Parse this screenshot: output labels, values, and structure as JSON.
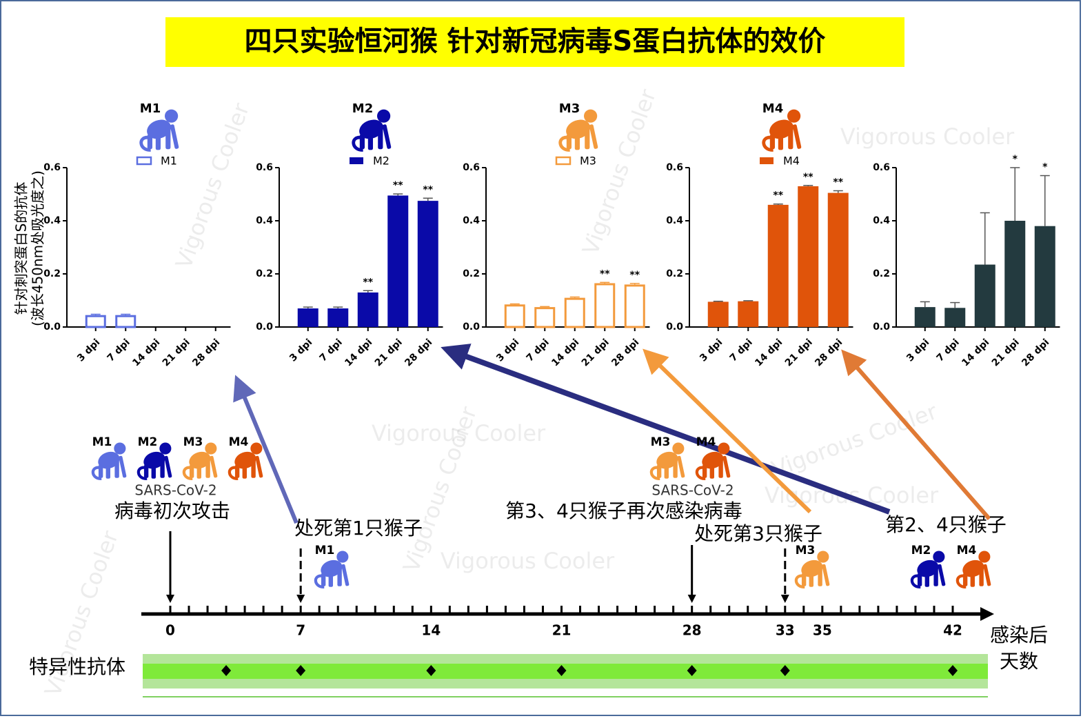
{
  "title": "四只实验恒河猴 针对新冠病毒S蛋白抗体的效价",
  "watermark": "Vigorous Cooler",
  "chart_data": [
    {
      "type": "bar",
      "name": "M1",
      "legend": "M1",
      "color": "#5b6ee0",
      "hollow": true,
      "ylabel": [
        "针对刺突蛋白S的抗体",
        "(波长450nm处吸光度之)"
      ],
      "categories": [
        "3 dpi",
        "7 dpi",
        "14 dpi",
        "21 dpi",
        "28 dpi"
      ],
      "values": [
        0.045,
        0.045,
        null,
        null,
        null
      ],
      "errors": [
        0.003,
        0.003,
        null,
        null,
        null
      ],
      "sig": [
        null,
        null,
        null,
        null,
        null
      ],
      "ylim": [
        0,
        0.6
      ],
      "yticks": [
        {
          "value": 0,
          "label": "0.0"
        },
        0.2,
        0.4,
        0.6
      ]
    },
    {
      "type": "bar",
      "name": "M2",
      "legend": "M2",
      "color": "#0a0aa8",
      "hollow": false,
      "categories": [
        "3 dpi",
        "7 dpi",
        "14 dpi",
        "21 dpi",
        "28 dpi"
      ],
      "values": [
        0.07,
        0.07,
        0.13,
        0.495,
        0.475
      ],
      "errors": [
        0.005,
        0.005,
        0.007,
        0.006,
        0.01
      ],
      "sig": [
        null,
        null,
        "**",
        "**",
        "**"
      ],
      "ylim": [
        0,
        0.6
      ],
      "yticks": [
        {
          "value": 0,
          "label": "0.0"
        },
        0.2,
        0.4,
        0.6
      ]
    },
    {
      "type": "bar",
      "name": "M3",
      "legend": "M3",
      "color": "#f39a3c",
      "hollow": true,
      "categories": [
        "3 dpi",
        "7 dpi",
        "14 dpi",
        "21 dpi",
        "28 dpi"
      ],
      "values": [
        0.085,
        0.075,
        0.11,
        0.165,
        0.16
      ],
      "errors": [
        0.002,
        0.002,
        0.003,
        0.003,
        0.004
      ],
      "sig": [
        null,
        null,
        null,
        "**",
        "**"
      ],
      "ylim": [
        0,
        0.6
      ],
      "yticks": [
        {
          "value": 0,
          "label": "0.0"
        },
        0.2,
        0.4,
        0.6
      ]
    },
    {
      "type": "bar",
      "name": "M4",
      "legend": "M4",
      "color": "#e0540a",
      "hollow": false,
      "categories": [
        "3 dpi",
        "7 dpi",
        "14 dpi",
        "21 dpi",
        "28 dpi"
      ],
      "values": [
        0.095,
        0.097,
        0.46,
        0.53,
        0.505
      ],
      "errors": [
        0.002,
        0.002,
        0.003,
        0.003,
        0.008
      ],
      "sig": [
        null,
        null,
        "**",
        "**",
        "**"
      ],
      "ylim": [
        0,
        0.6
      ],
      "yticks": [
        {
          "value": 0,
          "label": "0.0"
        },
        0.2,
        0.4,
        0.6
      ]
    },
    {
      "type": "bar",
      "color": "#233a3f",
      "hollow": false,
      "categories": [
        "3 dpi",
        "7 dpi",
        "14 dpi",
        "21 dpi",
        "28 dpi"
      ],
      "values": [
        0.075,
        0.072,
        0.235,
        0.4,
        0.38
      ],
      "errors": [
        0.02,
        0.02,
        0.195,
        0.2,
        0.19
      ],
      "sig": [
        null,
        null,
        null,
        "*",
        "*"
      ],
      "ylim": [
        0,
        0.6
      ],
      "yticks": [
        {
          "value": 0,
          "label": "0.0"
        },
        0.2,
        0.4,
        0.6
      ]
    }
  ],
  "timeline": {
    "xlim": [
      0,
      42
    ],
    "xticks": [
      0,
      7,
      14,
      21,
      28,
      33,
      35,
      42
    ],
    "minor_step": 1,
    "axis_label": [
      "感染后",
      "天数"
    ],
    "events": [
      {
        "day": 0,
        "virus": "SARS-CoV-2",
        "label": "病毒初次攻击",
        "arrow": "solid",
        "monkeys": [
          "M1",
          "M2",
          "M3",
          "M4"
        ]
      },
      {
        "day": 7,
        "label": "处死第1只猴子",
        "arrow": "dashed",
        "monkeys": [
          "M1"
        ]
      },
      {
        "day": 28,
        "virus": "SARS-CoV-2",
        "label": "第3、4只猴子再次感染病毒",
        "arrow": "solid",
        "monkeys": [
          "M3",
          "M4"
        ]
      },
      {
        "day": 33,
        "label": "处死第3只猴子",
        "arrow": "dashed",
        "monkeys": [
          "M3"
        ]
      },
      {
        "day": 42,
        "label": "第2、4只猴子",
        "monkeys": [
          "M2",
          "M4"
        ]
      }
    ],
    "antibody_label": "特异性抗体",
    "antibody_days": [
      3,
      7,
      14,
      21,
      28,
      33,
      42
    ]
  }
}
